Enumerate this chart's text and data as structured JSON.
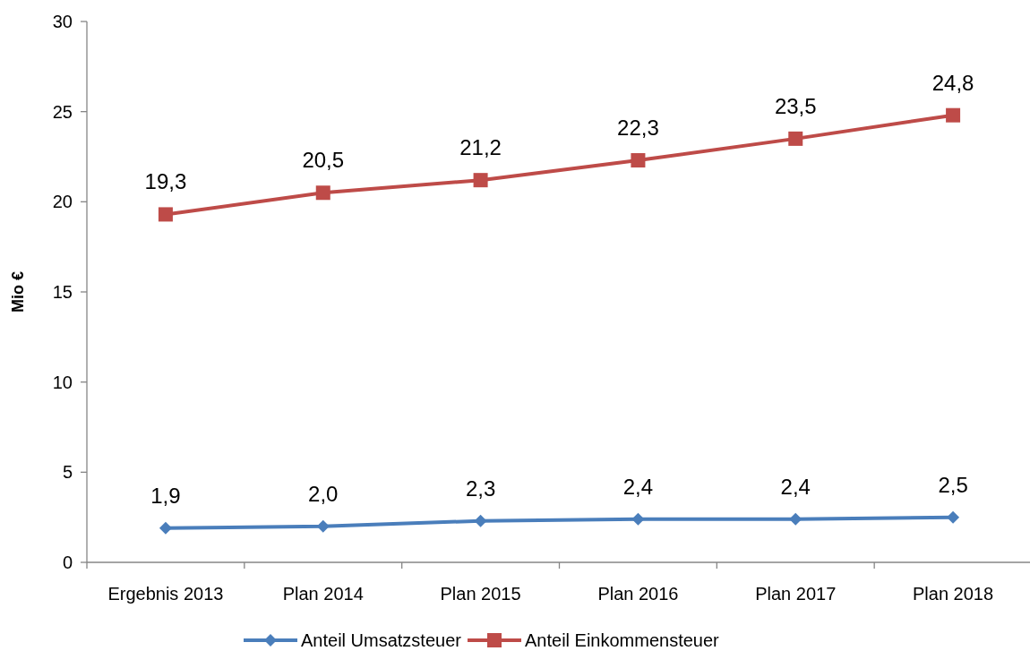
{
  "chart_data": {
    "type": "line",
    "ylabel": "Mio €",
    "categories": [
      "Ergebnis 2013",
      "Plan 2014",
      "Plan 2015",
      "Plan 2016",
      "Plan 2017",
      "Plan 2018"
    ],
    "series": [
      {
        "name": "Anteil Umsatzsteuer",
        "color": "#4a7ebb",
        "marker": "diamond",
        "values": [
          1.9,
          2.0,
          2.3,
          2.4,
          2.4,
          2.5
        ],
        "value_labels": [
          "1,9",
          "2,0",
          "2,3",
          "2,4",
          "2,4",
          "2,5"
        ]
      },
      {
        "name": "Anteil Einkommensteuer",
        "color": "#be4b48",
        "marker": "square",
        "values": [
          19.3,
          20.5,
          21.2,
          22.3,
          23.5,
          24.8
        ],
        "value_labels": [
          "19,3",
          "20,5",
          "21,2",
          "22,3",
          "23,5",
          "24,8"
        ]
      }
    ],
    "ylim": [
      0,
      30
    ],
    "yticks": [
      0,
      5,
      10,
      15,
      20,
      25,
      30
    ],
    "grid": false,
    "legend": "bottom",
    "line_style": "solid"
  }
}
